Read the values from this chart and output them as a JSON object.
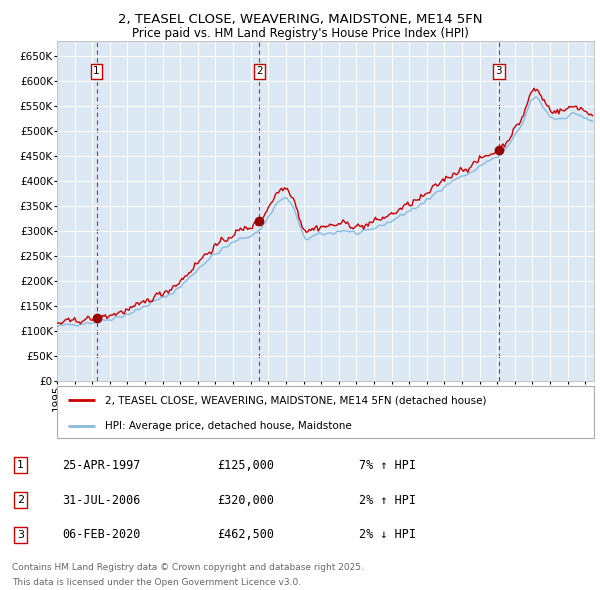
{
  "title1": "2, TEASEL CLOSE, WEAVERING, MAIDSTONE, ME14 5FN",
  "title2": "Price paid vs. HM Land Registry's House Price Index (HPI)",
  "property_label": "2, TEASEL CLOSE, WEAVERING, MAIDSTONE, ME14 5FN (detached house)",
  "hpi_label": "HPI: Average price, detached house, Maidstone",
  "purchase_info": [
    [
      "1",
      "25-APR-1997",
      "£125,000",
      "7% ↑ HPI"
    ],
    [
      "2",
      "31-JUL-2006",
      "£320,000",
      "2% ↑ HPI"
    ],
    [
      "3",
      "06-FEB-2020",
      "£462,500",
      "2% ↓ HPI"
    ]
  ],
  "purchase_prices": [
    125000,
    320000,
    462500
  ],
  "purchase_labels": [
    "1",
    "2",
    "3"
  ],
  "footnote1": "Contains HM Land Registry data © Crown copyright and database right 2025.",
  "footnote2": "This data is licensed under the Open Government Licence v3.0.",
  "ylim": [
    0,
    680000
  ],
  "yticks": [
    0,
    50000,
    100000,
    150000,
    200000,
    250000,
    300000,
    350000,
    400000,
    450000,
    500000,
    550000,
    600000,
    650000
  ],
  "bg_color": "#dce9f5",
  "grid_color": "#ffffff",
  "property_color": "#cc0000",
  "hpi_color": "#88bbdd",
  "vline_color": "#cc0000",
  "box_color": "#cc0000",
  "title1_fontsize": 9.5,
  "title2_fontsize": 8.5
}
